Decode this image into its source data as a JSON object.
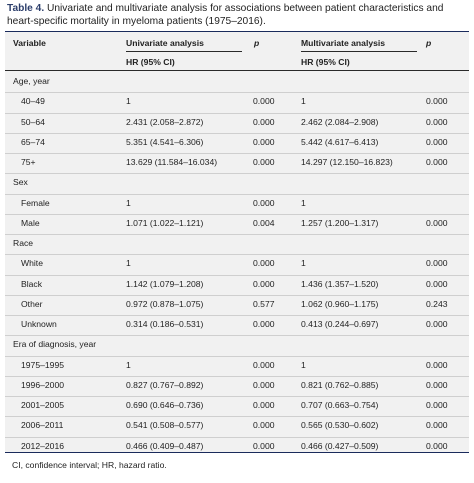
{
  "caption": {
    "label": "Table 4.",
    "text": " Univariate and multivariate analysis for associations between patient characteristics and heart-specific mortality in myeloma patients (1975–2016)."
  },
  "headers": {
    "variable": "Variable",
    "univariate": "Univariate analysis",
    "p1": "p",
    "multivariate": "Multivariate analysis",
    "p2": "p",
    "hr_uni": "HR (95% CI)",
    "hr_multi": "HR (95% CI)"
  },
  "rows": [
    {
      "var": "Age, year",
      "group": true
    },
    {
      "var": "40–49",
      "uni": "1",
      "p1": "0.000",
      "multi": "1",
      "p2": "0.000"
    },
    {
      "var": "50–64",
      "uni": "2.431 (2.058–2.872)",
      "p1": "0.000",
      "multi": "2.462 (2.084–2.908)",
      "p2": "0.000"
    },
    {
      "var": "65–74",
      "uni": "5.351 (4.541–6.306)",
      "p1": "0.000",
      "multi": "5.442 (4.617–6.413)",
      "p2": "0.000"
    },
    {
      "var": "75+",
      "uni": "13.629 (11.584–16.034)",
      "p1": "0.000",
      "multi": "14.297 (12.150–16.823)",
      "p2": "0.000"
    },
    {
      "var": "Sex",
      "group": true
    },
    {
      "var": "Female",
      "uni": "1",
      "p1": "0.000",
      "multi": "1",
      "p2": ""
    },
    {
      "var": "Male",
      "uni": "1.071 (1.022–1.121)",
      "p1": "0.004",
      "multi": "1.257 (1.200–1.317)",
      "p2": "0.000"
    },
    {
      "var": "Race",
      "group": true
    },
    {
      "var": "White",
      "uni": "1",
      "p1": "0.000",
      "multi": "1",
      "p2": "0.000"
    },
    {
      "var": "Black",
      "uni": "1.142 (1.079–1.208)",
      "p1": "0.000",
      "multi": "1.436 (1.357–1.520)",
      "p2": "0.000"
    },
    {
      "var": "Other",
      "uni": "0.972 (0.878–1.075)",
      "p1": "0.577",
      "multi": "1.062 (0.960–1.175)",
      "p2": "0.243"
    },
    {
      "var": "Unknown",
      "uni": "0.314 (0.186–0.531)",
      "p1": "0.000",
      "multi": "0.413 (0.244–0.697)",
      "p2": "0.000"
    },
    {
      "var": "Era of diagnosis, year",
      "group": true
    },
    {
      "var": "1975–1995",
      "uni": "1",
      "p1": "0.000",
      "multi": "1",
      "p2": "0.000"
    },
    {
      "var": "1996–2000",
      "uni": "0.827 (0.767–0.892)",
      "p1": "0.000",
      "multi": "0.821 (0.762–0.885)",
      "p2": "0.000"
    },
    {
      "var": "2001–2005",
      "uni": "0.690 (0.646–0.736)",
      "p1": "0.000",
      "multi": "0.707 (0.663–0.754)",
      "p2": "0.000"
    },
    {
      "var": "2006–2011",
      "uni": "0.541 (0.508–0.577)",
      "p1": "0.000",
      "multi": "0.565 (0.530–0.602)",
      "p2": "0.000"
    },
    {
      "var": "2012–2016",
      "uni": "0.466 (0.409–0.487)",
      "p1": "0.000",
      "multi": "0.466 (0.427–0.509)",
      "p2": "0.000"
    }
  ],
  "footnote": "CI, confidence interval; HR, hazard ratio.",
  "colors": {
    "accent": "#2c3e6b",
    "table_bg": "#f1f1f1"
  }
}
